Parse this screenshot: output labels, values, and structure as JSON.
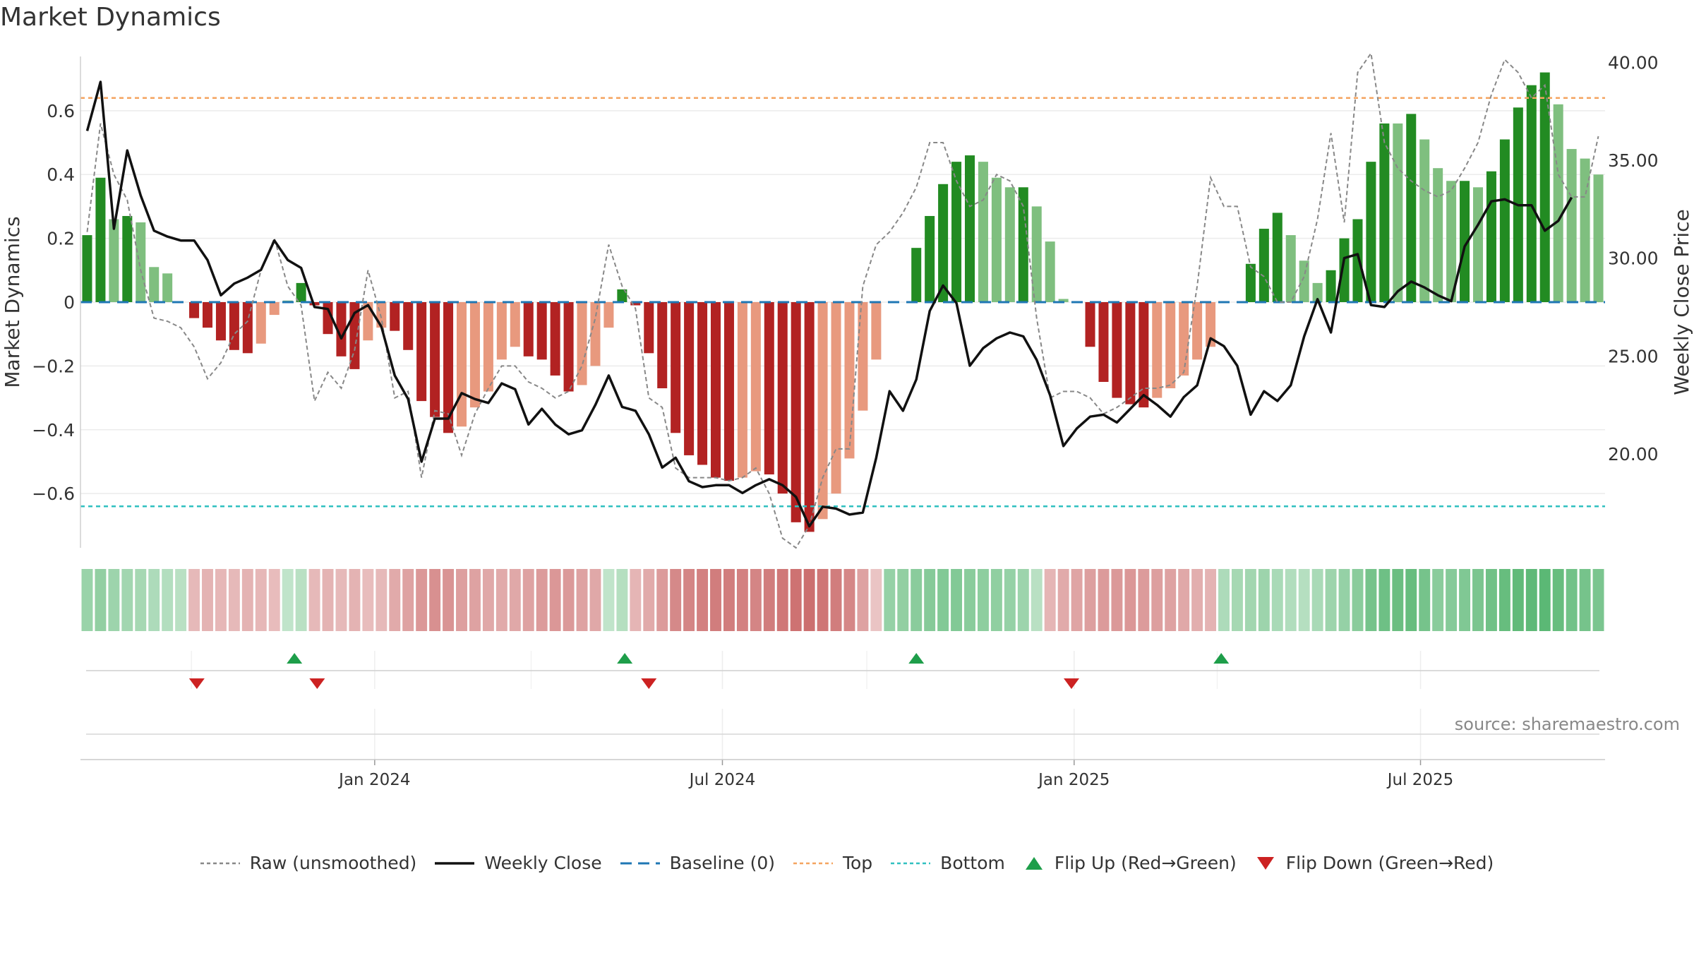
{
  "title": "Market Dynamics",
  "source": "source: sharemaestro.com",
  "chart_data": {
    "type": "bar",
    "title": "Market Dynamics",
    "ylabel": "Market Dynamics",
    "ylabel_right": "Weekly Close Price",
    "ylim": [
      -0.77,
      0.77
    ],
    "ylim_right": [
      15.2,
      40.3
    ],
    "yticks": [
      -0.6,
      -0.4,
      -0.2,
      0,
      0.2,
      0.4,
      0.6
    ],
    "ytick_labels": [
      "−0.6",
      "−0.4",
      "−0.2",
      "0",
      "0.2",
      "0.4",
      "0.6"
    ],
    "yticks_right": [
      20,
      25,
      30,
      35,
      40
    ],
    "ytick_right_labels": [
      "20.00",
      "25.00",
      "30.00",
      "35.00",
      "40.00"
    ],
    "xticks": [
      {
        "index": 21.5,
        "label": "Jan 2024"
      },
      {
        "index": 47.5,
        "label": "Jul 2024"
      },
      {
        "index": 73.8,
        "label": "Jan 2025"
      },
      {
        "index": 99.7,
        "label": "Jul 2025"
      }
    ],
    "top_line": 0.64,
    "bottom_line": -0.64,
    "bars": [
      0.21,
      0.39,
      0.26,
      0.27,
      0.25,
      0.11,
      0.09,
      0,
      -0.05,
      -0.08,
      -0.12,
      -0.15,
      -0.16,
      -0.13,
      -0.04,
      0.005,
      0.06,
      -0.01,
      -0.1,
      -0.17,
      -0.21,
      -0.12,
      -0.08,
      -0.09,
      -0.15,
      -0.31,
      -0.36,
      -0.41,
      -0.39,
      -0.33,
      -0.28,
      -0.18,
      -0.14,
      -0.17,
      -0.18,
      -0.23,
      -0.28,
      -0.26,
      -0.2,
      -0.08,
      0.04,
      -0.01,
      -0.16,
      -0.27,
      -0.41,
      -0.48,
      -0.51,
      -0.55,
      -0.56,
      -0.55,
      -0.53,
      -0.54,
      -0.6,
      -0.69,
      -0.72,
      -0.68,
      -0.6,
      -0.49,
      -0.34,
      -0.18,
      0,
      0,
      0.17,
      0.27,
      0.37,
      0.44,
      0.46,
      0.44,
      0.39,
      0.36,
      0.36,
      0.3,
      0.19,
      0.01,
      0,
      -0.14,
      -0.25,
      -0.3,
      -0.32,
      -0.33,
      -0.3,
      -0.27,
      -0.23,
      -0.18,
      -0.14,
      0,
      0,
      0.12,
      0.23,
      0.28,
      0.21,
      0.13,
      0.06,
      0.1,
      0.2,
      0.26,
      0.44,
      0.56,
      0.56,
      0.59,
      0.51,
      0.42,
      0.38,
      0.38,
      0.36,
      0.41,
      0.51,
      0.61,
      0.68,
      0.72,
      0.62,
      0.48,
      0.45,
      0.4
    ],
    "bar_strength": [
      1,
      1,
      0,
      1,
      0,
      0,
      0,
      0,
      1,
      1,
      1,
      1,
      1,
      0,
      0,
      0,
      1,
      1,
      1,
      1,
      1,
      0,
      0,
      1,
      1,
      1,
      1,
      1,
      0,
      0,
      0,
      0,
      0,
      1,
      1,
      1,
      1,
      0,
      0,
      0,
      1,
      1,
      1,
      1,
      1,
      1,
      1,
      1,
      1,
      0,
      0,
      1,
      1,
      1,
      1,
      0,
      0,
      0,
      0,
      0,
      0,
      0,
      1,
      1,
      1,
      1,
      1,
      0,
      0,
      0,
      1,
      0,
      0,
      0,
      0,
      1,
      1,
      1,
      1,
      1,
      0,
      0,
      0,
      0,
      0,
      0,
      0,
      1,
      1,
      1,
      0,
      0,
      0,
      1,
      1,
      1,
      1,
      1,
      0,
      1,
      0,
      0,
      0,
      1,
      0,
      1,
      1,
      1,
      1,
      1,
      0,
      0,
      0,
      0
    ],
    "raw_unsmoothed": [
      0.22,
      0.56,
      0.4,
      0.32,
      0.1,
      -0.05,
      -0.06,
      -0.08,
      -0.14,
      -0.24,
      -0.19,
      -0.1,
      -0.06,
      0.1,
      0.2,
      0.05,
      -0.01,
      -0.31,
      -0.22,
      -0.27,
      -0.15,
      0.1,
      -0.05,
      -0.3,
      -0.28,
      -0.55,
      -0.34,
      -0.35,
      -0.48,
      -0.35,
      -0.27,
      -0.2,
      -0.2,
      -0.25,
      -0.27,
      -0.3,
      -0.28,
      -0.2,
      -0.05,
      0.18,
      0.05,
      -0.02,
      -0.3,
      -0.33,
      -0.52,
      -0.55,
      -0.55,
      -0.55,
      -0.56,
      -0.55,
      -0.52,
      -0.6,
      -0.74,
      -0.85,
      -0.7,
      -0.55,
      -0.46,
      -0.46,
      0.05,
      0.18,
      0.22,
      0.28,
      0.36,
      0.5,
      0.5,
      0.38,
      0.3,
      0.32,
      0.4,
      0.38,
      0.3,
      -0.05,
      -0.3,
      -0.28,
      -0.28,
      -0.3,
      -0.35,
      -0.33,
      -0.3,
      -0.27,
      -0.27,
      -0.26,
      -0.22,
      0.05,
      0.39,
      0.3,
      0.3,
      0.11,
      0.08,
      0.0,
      0.0,
      0.08,
      0.26,
      0.53,
      0.25,
      0.72,
      0.78,
      0.5,
      0.42,
      0.38,
      0.35,
      0.33,
      0.35,
      0.42,
      0.5,
      0.65,
      0.76,
      0.72,
      0.64,
      0.68,
      0.4,
      0.33,
      0.33,
      0.52
    ],
    "weekly_close": [
      36.5,
      39.0,
      31.5,
      35.5,
      33.2,
      31.4,
      31.1,
      30.9,
      30.9,
      29.9,
      28.1,
      28.7,
      29.0,
      29.4,
      30.9,
      29.9,
      29.5,
      27.5,
      27.4,
      25.9,
      27.2,
      27.6,
      26.5,
      24.0,
      22.8,
      19.6,
      21.8,
      21.8,
      23.1,
      22.8,
      22.6,
      23.6,
      23.3,
      21.5,
      22.3,
      21.5,
      21.0,
      21.2,
      22.5,
      24.0,
      22.4,
      22.2,
      21.0,
      19.3,
      19.8,
      18.6,
      18.3,
      18.4,
      18.4,
      18.0,
      18.4,
      18.7,
      18.4,
      17.8,
      16.3,
      17.3,
      17.2,
      16.9,
      17.0,
      19.8,
      23.2,
      22.2,
      23.8,
      27.3,
      28.6,
      27.7,
      24.5,
      25.4,
      25.9,
      26.2,
      26.0,
      24.8,
      23.0,
      20.4,
      21.3,
      21.9,
      22.0,
      21.6,
      22.3,
      23.0,
      22.5,
      21.9,
      22.9,
      23.5,
      25.9,
      25.5,
      24.5,
      22.0,
      23.2,
      22.7,
      23.5,
      26.0,
      27.9,
      26.2,
      30.0,
      30.2,
      27.6,
      27.5,
      28.3,
      28.8,
      28.5,
      28.1,
      27.8,
      30.6,
      31.7,
      32.9,
      33.0,
      32.7,
      32.7,
      31.4,
      31.9,
      33.1
    ],
    "heat_strip": [
      0.4,
      0.45,
      0.37,
      0.35,
      0.32,
      0.28,
      0.24,
      0.2,
      -0.22,
      -0.26,
      -0.24,
      -0.22,
      -0.26,
      -0.24,
      -0.2,
      0.15,
      0.2,
      -0.22,
      -0.26,
      -0.22,
      -0.26,
      -0.2,
      -0.22,
      -0.32,
      -0.38,
      -0.45,
      -0.5,
      -0.48,
      -0.4,
      -0.38,
      -0.34,
      -0.32,
      -0.34,
      -0.38,
      -0.42,
      -0.45,
      -0.44,
      -0.38,
      -0.34,
      0.15,
      0.22,
      -0.25,
      -0.32,
      -0.42,
      -0.55,
      -0.58,
      -0.6,
      -0.62,
      -0.62,
      -0.6,
      -0.58,
      -0.62,
      -0.66,
      -0.7,
      -0.72,
      -0.68,
      -0.62,
      -0.56,
      -0.38,
      -0.15,
      0.42,
      0.45,
      0.5,
      0.52,
      0.55,
      0.55,
      0.5,
      0.48,
      0.46,
      0.42,
      0.38,
      0.2,
      -0.25,
      -0.32,
      -0.36,
      -0.4,
      -0.42,
      -0.44,
      -0.45,
      -0.42,
      -0.4,
      -0.38,
      -0.34,
      -0.3,
      -0.26,
      0.28,
      0.32,
      0.35,
      0.38,
      0.3,
      0.25,
      0.22,
      0.3,
      0.38,
      0.42,
      0.5,
      0.62,
      0.68,
      0.7,
      0.72,
      0.62,
      0.5,
      0.52,
      0.56,
      0.6,
      0.66,
      0.72,
      0.76,
      0.78,
      0.8,
      0.72,
      0.65,
      0.62,
      0.6
    ],
    "flips_up": [
      15.5,
      40.2,
      62.0,
      84.8
    ],
    "flips_down": [
      8.2,
      17.2,
      42.0,
      73.6
    ],
    "grid": true,
    "legend": {
      "placement": "bottom",
      "entries": [
        "Raw (unsmoothed)",
        "Weekly Close",
        "Baseline (0)",
        "Top",
        "Bottom",
        "Flip Up (Red→Green)",
        "Flip Down (Green→Red)"
      ]
    },
    "colors": {
      "strong_green": "#228b22",
      "light_green": "#7fbf7f",
      "strong_red": "#b22222",
      "light_red": "#e8997e",
      "top": "#f4a460",
      "bottom": "#30c0c0",
      "baseline": "#1f77b4",
      "close": "#111111",
      "raw": "#888888",
      "flip_up": "#1e9e4a",
      "flip_down": "#cc2222"
    }
  }
}
